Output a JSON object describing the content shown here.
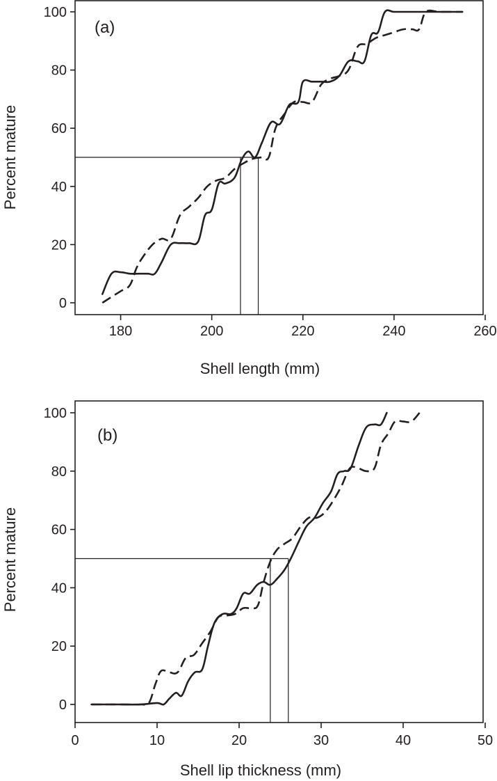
{
  "chart_data": [
    {
      "type": "line",
      "panel_label": "(a)",
      "xlabel": "Shell length (mm)",
      "ylabel": "Percent mature",
      "xlim": [
        170,
        260
      ],
      "ylim": [
        0,
        100
      ],
      "xticks": [
        180,
        200,
        220,
        240,
        260
      ],
      "yticks": [
        0,
        20,
        40,
        60,
        80,
        100
      ],
      "grid": false,
      "legend": null,
      "reference_lines": {
        "horizontal_y": 50,
        "vertical_x": [
          206.3,
          210.2
        ]
      },
      "series": [
        {
          "name": "solid",
          "style": "solid",
          "x": [
            176,
            178,
            180,
            182,
            184,
            186,
            187.5,
            189,
            191,
            193,
            195,
            197,
            198.5,
            200,
            201.5,
            203,
            205,
            206.5,
            208,
            209.5,
            211,
            213,
            215,
            217,
            219,
            220,
            222,
            224,
            226,
            228,
            230,
            232,
            233.5,
            235,
            236.5,
            238,
            240,
            243,
            246,
            250,
            255
          ],
          "y": [
            3,
            10,
            10.5,
            10,
            10,
            10,
            10,
            14,
            20,
            20.5,
            20.5,
            21,
            30,
            32,
            41,
            41,
            43,
            49,
            52,
            50,
            55,
            62,
            61.5,
            68,
            69,
            76,
            76,
            76,
            76,
            78,
            83,
            83,
            83,
            92,
            93,
            100,
            100,
            100,
            100,
            100,
            100
          ]
        },
        {
          "name": "dashed",
          "style": "dashed",
          "x": [
            176,
            178,
            180,
            182,
            183.5,
            185,
            187,
            189,
            191,
            193,
            195,
            197,
            199,
            201,
            203,
            205,
            207,
            209,
            211,
            212.5,
            214,
            216,
            218,
            220,
            222,
            224,
            226,
            228,
            230,
            232,
            234,
            236,
            238,
            240,
            242,
            244,
            245.5,
            247,
            250,
            255
          ],
          "y": [
            0,
            2,
            4,
            6,
            12,
            16,
            20,
            22,
            22,
            30,
            33,
            36,
            40,
            42,
            43,
            46,
            48,
            49.5,
            50,
            50,
            60,
            65,
            69,
            69,
            69,
            75,
            77,
            78,
            80,
            88,
            89,
            91,
            92,
            93,
            94,
            94,
            94,
            100,
            100,
            100
          ]
        }
      ]
    },
    {
      "type": "line",
      "panel_label": "(b)",
      "xlabel": "Shell lip thickness (mm)",
      "ylabel": "Percent mature",
      "xlim": [
        0,
        50
      ],
      "ylim": [
        0,
        100
      ],
      "xticks": [
        0,
        10,
        20,
        30,
        40,
        50
      ],
      "yticks": [
        0,
        20,
        40,
        60,
        80,
        100
      ],
      "grid": false,
      "legend": null,
      "reference_lines": {
        "horizontal_y": 50,
        "vertical_x": [
          23.8,
          26.0
        ]
      },
      "series": [
        {
          "name": "solid",
          "style": "solid",
          "x": [
            2,
            5,
            8,
            10,
            10.8,
            11.5,
            12.3,
            13,
            13.8,
            14.6,
            15.5,
            16.2,
            17,
            18,
            19,
            19.7,
            20.5,
            21.3,
            22.2,
            23,
            23.8,
            24.6,
            25.5,
            26.3,
            27.3,
            28.2,
            29.2,
            30.2,
            31.2,
            32,
            32.8,
            33.6,
            34.6,
            35.5,
            36.5,
            37.3,
            38
          ],
          "y": [
            0,
            0,
            0,
            0.5,
            0,
            2,
            4,
            3,
            8,
            11,
            12,
            20,
            28,
            31,
            31,
            33,
            38,
            38,
            41,
            42,
            41,
            43,
            46,
            50,
            56,
            61,
            64,
            69,
            73,
            79,
            80,
            81,
            89,
            95,
            96,
            96,
            100
          ]
        },
        {
          "name": "dashed",
          "style": "dashed",
          "x": [
            2,
            5,
            8,
            9,
            9.8,
            10.5,
            11.5,
            12.5,
            13.5,
            14.5,
            15.5,
            16.5,
            17.5,
            18.5,
            19.5,
            20.5,
            21.5,
            22.3,
            23,
            23.8,
            24.6,
            25.5,
            26.5,
            27.5,
            28.5,
            29.5,
            30.5,
            31.5,
            32.5,
            33.5,
            34.5,
            35.5,
            36.5,
            37.3,
            38.2,
            39,
            40,
            41,
            42
          ],
          "y": [
            0,
            0,
            0,
            0.5,
            7,
            11.5,
            11,
            11,
            16,
            17,
            21,
            25,
            30,
            30.5,
            31,
            33,
            33,
            34,
            42,
            49,
            53,
            55,
            57,
            61,
            64,
            64,
            66,
            70,
            75,
            81,
            81,
            80,
            81,
            89,
            93,
            97,
            97,
            97,
            100
          ]
        }
      ]
    }
  ],
  "panels": {
    "a": {
      "label": "(a)",
      "xlabel": "Shell length (mm)",
      "ylabel": "Percent mature",
      "xtick_labels": [
        "180",
        "200",
        "220",
        "240",
        "260"
      ],
      "ytick_labels": [
        "0",
        "20",
        "40",
        "60",
        "80",
        "100"
      ]
    },
    "b": {
      "label": "(b)",
      "xlabel": "Shell lip thickness (mm)",
      "ylabel": "Percent mature",
      "xtick_labels": [
        "0",
        "10",
        "20",
        "30",
        "40",
        "50"
      ],
      "ytick_labels": [
        "0",
        "20",
        "40",
        "60",
        "80",
        "100"
      ]
    }
  },
  "colors": {
    "ink": "#231f20",
    "reference_line": "#231f20",
    "background": "#ffffff"
  }
}
